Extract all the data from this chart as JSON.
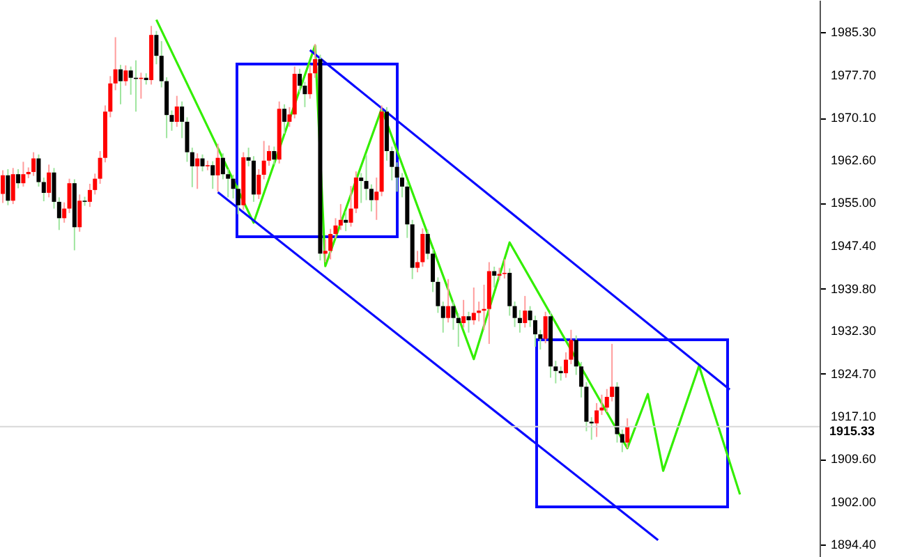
{
  "chart_data": {
    "type": "candlestick",
    "categories": [
      null,
      null,
      null,
      null,
      null,
      null,
      null,
      null,
      null,
      null,
      null,
      null,
      null,
      null,
      null,
      null,
      null,
      null,
      null,
      null,
      null,
      null,
      null,
      null,
      null,
      null,
      null,
      null,
      null,
      null,
      null,
      null,
      null,
      null,
      null,
      null,
      null,
      null,
      null,
      null,
      null,
      null,
      null,
      null,
      null,
      null,
      null,
      null,
      null,
      null,
      null,
      null,
      null,
      null,
      null,
      null,
      null,
      null,
      null,
      null,
      null,
      null,
      null,
      null,
      null,
      null,
      null,
      null,
      null,
      null,
      null,
      null,
      null,
      null,
      null,
      null,
      null,
      null,
      null,
      null,
      null,
      null,
      null,
      null,
      null,
      null,
      null,
      null,
      null,
      null,
      null,
      null,
      null,
      null,
      null,
      null,
      null,
      null,
      null,
      null,
      null,
      null,
      null,
      null,
      null,
      null,
      null,
      null,
      null,
      null,
      null,
      null,
      null,
      null,
      null,
      null,
      null,
      null,
      null,
      null,
      null,
      null,
      null,
      null,
      null,
      null,
      null,
      null,
      null,
      null,
      null,
      null,
      null,
      null,
      null,
      null,
      null,
      null,
      null,
      null,
      null,
      null,
      null,
      null,
      null,
      null,
      null,
      null,
      null,
      null,
      null,
      null,
      null,
      null,
      null,
      null,
      null,
      null,
      null,
      null
    ],
    "ohlc": [
      [
        1956.6,
        1960.8,
        1955.0,
        1959.9
      ],
      [
        1959.9,
        1961.0,
        1954.6,
        1955.4
      ],
      [
        1955.4,
        1961.2,
        1954.8,
        1960.1
      ],
      [
        1960.1,
        1961.0,
        1957.6,
        1958.5
      ],
      [
        1958.5,
        1962.3,
        1957.9,
        1960.1
      ],
      [
        1960.1,
        1961.3,
        1959.4,
        1960.5
      ],
      [
        1960.5,
        1964.0,
        1959.8,
        1962.9
      ],
      [
        1962.9,
        1963.6,
        1957.9,
        1958.7
      ],
      [
        1958.7,
        1959.5,
        1955.3,
        1956.8
      ],
      [
        1956.8,
        1961.8,
        1956.0,
        1960.4
      ],
      [
        1960.4,
        1961.2,
        1954.0,
        1955.2
      ],
      [
        1955.2,
        1956.0,
        1950.2,
        1952.3
      ],
      [
        1952.3,
        1955.1,
        1951.5,
        1954.0
      ],
      [
        1954.0,
        1959.3,
        1953.2,
        1958.5
      ],
      [
        1958.5,
        1959.2,
        1946.6,
        1950.7
      ],
      [
        1950.7,
        1956.5,
        1949.9,
        1955.4
      ],
      [
        1955.4,
        1956.1,
        1954.5,
        1955.2
      ],
      [
        1955.2,
        1958.4,
        1954.3,
        1957.3
      ],
      [
        1957.3,
        1960.2,
        1956.5,
        1959.3
      ],
      [
        1959.3,
        1964.2,
        1958.4,
        1963.0
      ],
      [
        1963.0,
        1972.3,
        1962.2,
        1971.2
      ],
      [
        1971.2,
        1977.5,
        1970.2,
        1976.2
      ],
      [
        1976.2,
        1984.4,
        1975.0,
        1978.7
      ],
      [
        1978.7,
        1979.5,
        1972.5,
        1976.6
      ],
      [
        1976.6,
        1979.4,
        1975.8,
        1978.5
      ],
      [
        1978.5,
        1979.2,
        1974.2,
        1977.2
      ],
      [
        1977.2,
        1980.3,
        1971.2,
        1977.0
      ],
      [
        1977.0,
        1978.1,
        1973.5,
        1977.2
      ],
      [
        1977.2,
        1978.0,
        1976.0,
        1976.8
      ],
      [
        1976.8,
        1986.4,
        1976.0,
        1984.8
      ],
      [
        1984.8,
        1985.5,
        1979.6,
        1981.1
      ],
      [
        1981.1,
        1983.7,
        1975.5,
        1976.6
      ],
      [
        1976.6,
        1977.3,
        1966.5,
        1970.6
      ],
      [
        1970.6,
        1971.4,
        1967.8,
        1969.4
      ],
      [
        1969.4,
        1974.0,
        1968.5,
        1972.1
      ],
      [
        1972.1,
        1973.0,
        1966.5,
        1969.4
      ],
      [
        1969.4,
        1970.2,
        1962.3,
        1964.0
      ],
      [
        1964.0,
        1964.8,
        1957.8,
        1961.5
      ],
      [
        1961.5,
        1963.8,
        1957.5,
        1962.9
      ],
      [
        1962.9,
        1963.6,
        1960.6,
        1961.5
      ],
      [
        1961.5,
        1962.5,
        1960.8,
        1961.7
      ],
      [
        1961.7,
        1962.4,
        1957.5,
        1959.9
      ],
      [
        1959.9,
        1965.5,
        1957.0,
        1963.0
      ],
      [
        1963.0,
        1963.8,
        1959.2,
        1960.1
      ],
      [
        1960.1,
        1961.0,
        1956.0,
        1959.3
      ],
      [
        1959.3,
        1960.0,
        1955.8,
        1957.5
      ],
      [
        1957.5,
        1958.2,
        1953.0,
        1954.6
      ],
      [
        1954.6,
        1964.0,
        1953.8,
        1963.1
      ],
      [
        1963.1,
        1964.8,
        1961.5,
        1962.5
      ],
      [
        1962.5,
        1963.3,
        1955.2,
        1956.5
      ],
      [
        1956.5,
        1961.0,
        1955.7,
        1960.0
      ],
      [
        1960.0,
        1966.0,
        1959.2,
        1962.5
      ],
      [
        1962.5,
        1965.2,
        1961.6,
        1964.2
      ],
      [
        1964.2,
        1965.0,
        1961.8,
        1962.7
      ],
      [
        1962.7,
        1973.0,
        1962.0,
        1971.7
      ],
      [
        1971.7,
        1972.5,
        1967.3,
        1969.4
      ],
      [
        1969.4,
        1972.0,
        1968.5,
        1970.7
      ],
      [
        1970.7,
        1979.2,
        1970.0,
        1977.9
      ],
      [
        1977.9,
        1978.8,
        1974.6,
        1975.8
      ],
      [
        1975.8,
        1976.5,
        1972.0,
        1974.3
      ],
      [
        1974.3,
        1979.5,
        1973.5,
        1978.0
      ],
      [
        1978.0,
        1983.2,
        1977.2,
        1980.5
      ],
      [
        1980.5,
        1981.3,
        1944.8,
        1946.0
      ],
      [
        1946.0,
        1948.5,
        1944.5,
        1946.5
      ],
      [
        1946.5,
        1950.4,
        1945.0,
        1949.5
      ],
      [
        1949.5,
        1952.3,
        1948.7,
        1951.0
      ],
      [
        1951.0,
        1954.8,
        1950.2,
        1952.0
      ],
      [
        1952.0,
        1953.5,
        1950.0,
        1951.5
      ],
      [
        1951.5,
        1958.0,
        1950.8,
        1954.0
      ],
      [
        1954.0,
        1960.6,
        1953.2,
        1959.5
      ],
      [
        1959.5,
        1960.3,
        1955.0,
        1958.9
      ],
      [
        1958.9,
        1963.5,
        1955.5,
        1957.5
      ],
      [
        1957.5,
        1958.3,
        1953.5,
        1955.5
      ],
      [
        1955.5,
        1959.5,
        1952.0,
        1957.0
      ],
      [
        1957.0,
        1972.3,
        1956.2,
        1971.2
      ],
      [
        1971.2,
        1972.0,
        1962.5,
        1964.2
      ],
      [
        1964.2,
        1965.0,
        1959.0,
        1961.4
      ],
      [
        1961.4,
        1962.2,
        1957.0,
        1959.5
      ],
      [
        1959.5,
        1960.3,
        1956.0,
        1957.9
      ],
      [
        1957.9,
        1958.7,
        1948.8,
        1951.2
      ],
      [
        1951.2,
        1952.0,
        1941.5,
        1943.5
      ],
      [
        1943.5,
        1946.5,
        1942.7,
        1944.5
      ],
      [
        1944.5,
        1950.5,
        1943.7,
        1949.5
      ],
      [
        1949.5,
        1950.3,
        1945.0,
        1946.0
      ],
      [
        1946.0,
        1946.8,
        1939.2,
        1941.0
      ],
      [
        1941.0,
        1941.8,
        1935.5,
        1936.7
      ],
      [
        1936.7,
        1937.5,
        1932.0,
        1934.6
      ],
      [
        1934.6,
        1941.5,
        1933.8,
        1936.7
      ],
      [
        1936.7,
        1937.5,
        1932.5,
        1934.6
      ],
      [
        1934.6,
        1935.4,
        1929.5,
        1933.7
      ],
      [
        1933.7,
        1937.8,
        1932.9,
        1934.9
      ],
      [
        1934.9,
        1935.7,
        1932.0,
        1934.2
      ],
      [
        1934.2,
        1940.0,
        1933.4,
        1935.5
      ],
      [
        1935.5,
        1937.5,
        1934.0,
        1935.9
      ],
      [
        1935.9,
        1940.5,
        1932.5,
        1936.2
      ],
      [
        1936.2,
        1944.5,
        1930.0,
        1942.9
      ],
      [
        1942.9,
        1943.7,
        1940.0,
        1942.1
      ],
      [
        1942.1,
        1943.5,
        1941.3,
        1942.4
      ],
      [
        1942.4,
        1945.0,
        1941.6,
        1942.6
      ],
      [
        1942.6,
        1943.4,
        1935.0,
        1936.7
      ],
      [
        1936.7,
        1937.5,
        1933.0,
        1934.6
      ],
      [
        1934.6,
        1936.0,
        1932.0,
        1933.7
      ],
      [
        1933.7,
        1938.5,
        1932.9,
        1935.9
      ],
      [
        1935.9,
        1936.7,
        1933.0,
        1934.2
      ],
      [
        1934.2,
        1935.0,
        1929.5,
        1931.7
      ],
      [
        1931.7,
        1932.5,
        1929.0,
        1930.9
      ],
      [
        1930.9,
        1935.7,
        1930.1,
        1934.9
      ],
      [
        1934.9,
        1935.7,
        1924.0,
        1926.0
      ],
      [
        1926.0,
        1927.0,
        1923.0,
        1925.2
      ],
      [
        1925.2,
        1926.0,
        1923.5,
        1924.8
      ],
      [
        1924.8,
        1928.5,
        1924.0,
        1927.2
      ],
      [
        1927.2,
        1932.5,
        1926.4,
        1930.7
      ],
      [
        1930.7,
        1931.5,
        1924.5,
        1926.0
      ],
      [
        1926.0,
        1926.8,
        1920.5,
        1922.4
      ],
      [
        1922.4,
        1923.2,
        1914.5,
        1916.2
      ],
      [
        1916.2,
        1917.0,
        1913.0,
        1915.9
      ],
      [
        1915.9,
        1919.5,
        1913.5,
        1918.2
      ],
      [
        1918.2,
        1921.0,
        1917.4,
        1918.7
      ],
      [
        1918.7,
        1922.0,
        1917.9,
        1920.6
      ],
      [
        1920.6,
        1930.0,
        1919.8,
        1922.4
      ],
      [
        1922.4,
        1923.2,
        1912.5,
        1914.0
      ],
      [
        1914.0,
        1914.8,
        1910.8,
        1912.5
      ],
      [
        1912.5,
        1916.8,
        1911.5,
        1915.33
      ],
      null,
      null,
      null,
      null,
      null,
      null,
      null,
      null,
      null,
      null,
      null,
      null,
      null,
      null,
      null,
      null,
      null,
      null,
      null,
      null,
      null,
      null,
      null,
      null,
      null,
      null,
      null,
      null,
      null,
      null,
      null,
      null,
      null,
      null,
      null,
      null,
      null
    ],
    "series": [
      {
        "type": "line",
        "color": "#33ee00",
        "values": [
          null,
          null,
          null,
          null,
          null,
          null,
          null,
          null,
          null,
          null,
          null,
          null,
          null,
          null,
          null,
          null,
          null,
          null,
          null,
          null,
          null,
          null,
          null,
          null,
          null,
          null,
          null,
          null,
          null,
          null,
          1987.5,
          null,
          null,
          null,
          null,
          null,
          null,
          null,
          null,
          null,
          null,
          null,
          null,
          null,
          null,
          null,
          null,
          null,
          null,
          1951.5,
          null,
          null,
          null,
          null,
          null,
          null,
          null,
          null,
          null,
          null,
          null,
          1982.9,
          null,
          1943.8,
          null,
          null,
          null,
          null,
          null,
          null,
          null,
          null,
          null,
          null,
          1971.7,
          null,
          null,
          null,
          null,
          null,
          null,
          null,
          null,
          null,
          null,
          null,
          null,
          null,
          null,
          null,
          null,
          null,
          1927.3,
          null,
          null,
          null,
          null,
          null,
          null,
          1948.0,
          null,
          null,
          null,
          null,
          null,
          null,
          null,
          null,
          null,
          null,
          null,
          null,
          null,
          null,
          null,
          null,
          null,
          null,
          null,
          null,
          null,
          null,
          1911.5,
          null,
          null,
          null,
          1921.1,
          null,
          null,
          1907.5,
          null,
          null,
          null,
          null,
          null,
          null,
          1926.1,
          null,
          null,
          null,
          null,
          null,
          null,
          null,
          1903.3,
          null,
          null,
          null,
          null,
          null,
          null,
          null,
          null,
          null,
          null,
          null,
          null,
          null,
          null,
          null
        ]
      },
      {
        "type": "line",
        "color": "#0a0aff",
        "values": [
          null,
          null,
          null,
          null,
          null,
          null,
          null,
          null,
          null,
          null,
          null,
          null,
          null,
          null,
          null,
          null,
          null,
          null,
          null,
          null,
          null,
          null,
          null,
          null,
          null,
          null,
          null,
          null,
          null,
          null,
          null,
          null,
          null,
          null,
          null,
          null,
          null,
          null,
          null,
          null,
          null,
          null,
          null,
          null,
          null,
          null,
          null,
          null,
          null,
          null,
          null,
          null,
          null,
          null,
          null,
          null,
          null,
          null,
          null,
          null,
          1982.1,
          null,
          null,
          null,
          null,
          null,
          null,
          null,
          null,
          null,
          null,
          null,
          null,
          null,
          null,
          null,
          null,
          null,
          null,
          null,
          null,
          null,
          null,
          null,
          null,
          null,
          null,
          null,
          null,
          null,
          null,
          null,
          null,
          null,
          null,
          null,
          null,
          null,
          null,
          null,
          null,
          null,
          null,
          null,
          null,
          null,
          null,
          null,
          null,
          null,
          null,
          null,
          null,
          null,
          null,
          null,
          null,
          null,
          null,
          null,
          null,
          null,
          null,
          null,
          null,
          null,
          null,
          null,
          null,
          null,
          null,
          null,
          null,
          null,
          null,
          null,
          null,
          null,
          null,
          null,
          null,
          null,
          1921.9,
          null,
          null,
          null,
          null,
          null,
          null,
          null,
          null,
          null,
          null,
          null,
          null,
          null,
          null,
          null,
          null,
          null
        ]
      },
      {
        "type": "line",
        "color": "#0a0aff",
        "values": [
          null,
          null,
          null,
          null,
          null,
          null,
          null,
          null,
          null,
          null,
          null,
          null,
          null,
          null,
          null,
          null,
          null,
          null,
          null,
          null,
          null,
          null,
          null,
          null,
          null,
          null,
          null,
          null,
          null,
          null,
          null,
          null,
          null,
          null,
          null,
          null,
          null,
          null,
          null,
          null,
          null,
          null,
          1956.9,
          null,
          null,
          null,
          null,
          null,
          null,
          null,
          null,
          null,
          null,
          null,
          null,
          null,
          null,
          null,
          null,
          null,
          null,
          null,
          null,
          null,
          null,
          null,
          null,
          null,
          null,
          null,
          null,
          null,
          null,
          null,
          null,
          null,
          null,
          null,
          null,
          null,
          null,
          null,
          null,
          null,
          null,
          null,
          null,
          null,
          null,
          null,
          null,
          null,
          null,
          null,
          null,
          null,
          null,
          null,
          null,
          null,
          null,
          null,
          null,
          null,
          null,
          null,
          null,
          null,
          null,
          null,
          null,
          null,
          null,
          null,
          null,
          null,
          null,
          null,
          null,
          null,
          null,
          null,
          null,
          null,
          null,
          null,
          null,
          null,
          1895.2,
          null,
          null,
          null,
          null,
          null,
          null,
          null,
          null,
          null,
          null,
          null,
          null,
          null,
          null,
          null,
          null,
          null,
          null,
          null,
          null,
          null,
          null,
          null,
          null,
          null,
          null,
          null,
          null,
          null,
          null,
          null
        ]
      }
    ],
    "ylim": [
      1892.2,
      1991.0
    ],
    "yticks": [
      {
        "value": 1985.3,
        "label": "1985.30"
      },
      {
        "value": 1977.7,
        "label": "1977.70"
      },
      {
        "value": 1970.1,
        "label": "1970.10"
      },
      {
        "value": 1962.6,
        "label": "1962.60"
      },
      {
        "value": 1955.0,
        "label": "1955.00"
      },
      {
        "value": 1947.4,
        "label": "1947.40"
      },
      {
        "value": 1939.8,
        "label": "1939.80"
      },
      {
        "value": 1932.3,
        "label": "1932.30"
      },
      {
        "value": 1924.7,
        "label": "1924.70"
      },
      {
        "value": 1917.1,
        "label": "1917.10"
      },
      {
        "value": 1909.6,
        "label": "1909.60"
      },
      {
        "value": 1902.0,
        "label": "1902.00"
      },
      {
        "value": 1894.4,
        "label": "1894.40"
      }
    ],
    "tick_labels": "y",
    "ref_lines": [
      {
        "axis": "y",
        "value": 1915.33,
        "label": "1915.33",
        "color": "#d8d8d8"
      }
    ]
  }
}
